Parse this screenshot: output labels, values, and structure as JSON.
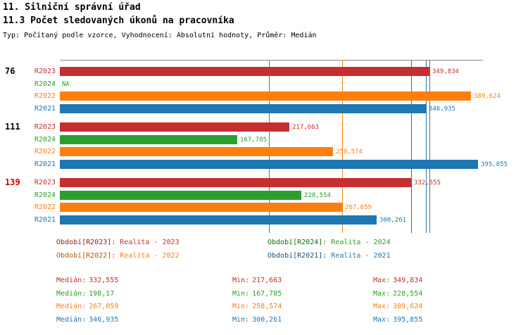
{
  "header": {
    "title1": "11. Silniční správní úřad",
    "title2": "11.3 Počet sledovaných úkonů na pracovníka",
    "subtitle": "Typ: Počítaný podle vzorce, Vyhodnocení: Absolutní hodnoty, Průměr: Medián"
  },
  "series": {
    "order": [
      "R2023",
      "R2024",
      "R2022",
      "R2021"
    ],
    "colors": {
      "R2023": "#c62f2f",
      "R2024": "#2ca02c",
      "R2022": "#ff7f0e",
      "R2021": "#1f77b4"
    },
    "dark_colors": {
      "R2023": "#8b1a1a",
      "R2024": "#146914",
      "R2022": "#b35900",
      "R2021": "#1a5276"
    },
    "highlight_color": "#cc0000"
  },
  "chart_data": {
    "type": "bar",
    "orientation": "horizontal",
    "title": "11.3 Počet sledovaných úkonů na pracovníka",
    "xlabel": "",
    "ylabel": "",
    "xlim": [
      0,
      400
    ],
    "grid": "median-lines-only",
    "legend_position": "bottom",
    "groups": [
      {
        "id": "76",
        "highlight": false,
        "bars": [
          {
            "series": "R2023",
            "value": 349.834,
            "label": "349,834"
          },
          {
            "series": "R2024",
            "value": null,
            "label": "NA"
          },
          {
            "series": "R2022",
            "value": 389.624,
            "label": "389,624"
          },
          {
            "series": "R2021",
            "value": 346.935,
            "label": "346,935"
          }
        ]
      },
      {
        "id": "111",
        "highlight": false,
        "bars": [
          {
            "series": "R2023",
            "value": 217.663,
            "label": "217,663"
          },
          {
            "series": "R2024",
            "value": 167.785,
            "label": "167,785"
          },
          {
            "series": "R2022",
            "value": 258.574,
            "label": "258,574"
          },
          {
            "series": "R2021",
            "value": 395.855,
            "label": "395,855"
          }
        ]
      },
      {
        "id": "139",
        "highlight": true,
        "bars": [
          {
            "series": "R2023",
            "value": 332.555,
            "label": "332,555"
          },
          {
            "series": "R2024",
            "value": 228.554,
            "label": "228,554"
          },
          {
            "series": "R2022",
            "value": 267.059,
            "label": "267,059"
          },
          {
            "series": "R2021",
            "value": 300.261,
            "label": "300,261"
          }
        ]
      }
    ],
    "median_lines": [
      {
        "series": "R2024",
        "value": 198.17
      },
      {
        "series": "R2022",
        "value": 267.059
      },
      {
        "series": "R2023",
        "value": 332.555
      },
      {
        "series": "R2021",
        "value": 346.935
      }
    ],
    "extra_gridlines": [
      {
        "value": 350,
        "color": "#666666"
      }
    ]
  },
  "legend": {
    "items": [
      {
        "series": "R2023",
        "prefix": "Období[R2023]:",
        "value": "Realita - 2023"
      },
      {
        "series": "R2024",
        "prefix": "Období[R2024]:",
        "value": "Realita - 2024"
      },
      {
        "series": "R2022",
        "prefix": "Období[R2022]:",
        "value": "Realita - 2022"
      },
      {
        "series": "R2021",
        "prefix": "Období[R2021]:",
        "value": "Realita - 2021"
      }
    ]
  },
  "stats": {
    "labels": {
      "median": "Medián:",
      "min": "Min:",
      "max": "Max:"
    },
    "rows": [
      {
        "series": "R2023",
        "median": "332,555",
        "min": "217,663",
        "max": "349,834"
      },
      {
        "series": "R2024",
        "median": "198,17",
        "min": "167,785",
        "max": "228,554"
      },
      {
        "series": "R2022",
        "median": "267,059",
        "min": "258,574",
        "max": "389,624"
      },
      {
        "series": "R2021",
        "median": "346,935",
        "min": "300,261",
        "max": "395,855"
      }
    ]
  }
}
